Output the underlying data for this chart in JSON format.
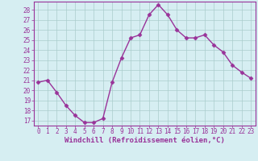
{
  "x": [
    0,
    1,
    2,
    3,
    4,
    5,
    6,
    7,
    8,
    9,
    10,
    11,
    12,
    13,
    14,
    15,
    16,
    17,
    18,
    19,
    20,
    21,
    22,
    23
  ],
  "y": [
    20.8,
    21.0,
    19.8,
    18.5,
    17.5,
    16.8,
    16.8,
    17.2,
    20.8,
    23.2,
    25.2,
    25.5,
    27.5,
    28.5,
    27.5,
    26.0,
    25.2,
    25.2,
    25.5,
    24.5,
    23.8,
    22.5,
    21.8,
    21.2
  ],
  "line_color": "#993399",
  "marker": "D",
  "markersize": 2.5,
  "linewidth": 1.0,
  "bg_color": "#d6eef2",
  "grid_color": "#aacccc",
  "xlabel": "Windchill (Refroidissement éolien,°C)",
  "xlabel_color": "#993399",
  "yticks": [
    17,
    18,
    19,
    20,
    21,
    22,
    23,
    24,
    25,
    26,
    27,
    28
  ],
  "xlim": [
    -0.5,
    23.5
  ],
  "ylim": [
    16.5,
    28.8
  ],
  "tick_color": "#993399",
  "spine_color": "#993399",
  "tick_fontsize": 5.5,
  "xlabel_fontsize": 6.5
}
